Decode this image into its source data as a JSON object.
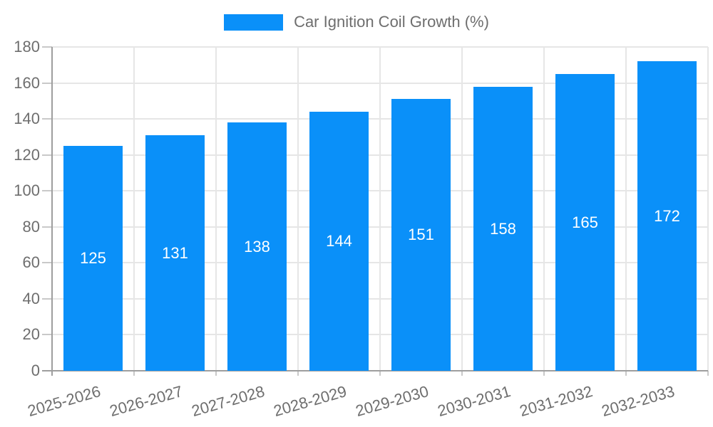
{
  "chart_data": {
    "type": "bar",
    "title": "Car Ignition Coil Growth (%)",
    "legend_entries": [
      "Car Ignition Coil Growth (%)"
    ],
    "legend_position": "top-center",
    "categories": [
      "2025-2026",
      "2026-2027",
      "2027-2028",
      "2028-2029",
      "2029-2030",
      "2030-2031",
      "2031-2032",
      "2032-2033"
    ],
    "values": [
      125,
      131,
      138,
      144,
      151,
      158,
      165,
      172
    ],
    "xlabel": "",
    "ylabel": "",
    "ylim": [
      0,
      180
    ],
    "yticks": [
      0,
      20,
      40,
      60,
      80,
      100,
      120,
      140,
      160,
      180
    ],
    "grid": true,
    "bar_value_labels_visible": true,
    "colors": {
      "bar": "#0a90f9",
      "bar_value_text": "#ffffff",
      "axis_text": "#6e6e6e",
      "grid": "#e6e6e6",
      "axis_line": "#9e9e9e",
      "tick": "#c9c9c9",
      "background": "#ffffff"
    }
  }
}
